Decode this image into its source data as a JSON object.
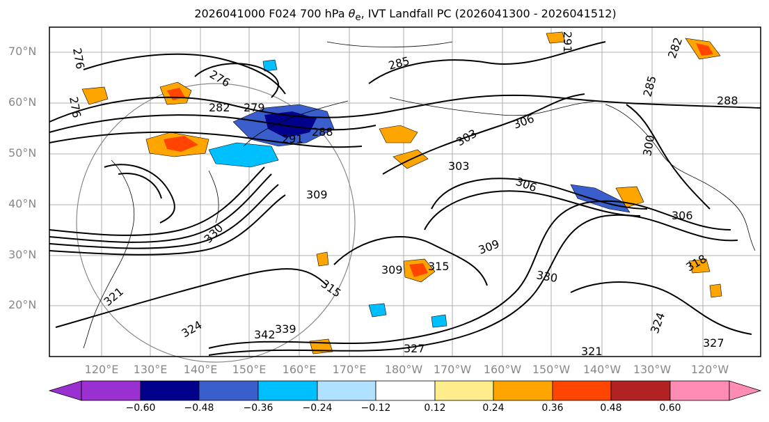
{
  "title": {
    "prefix": "2026041000 F024 700 hPa ",
    "theta": "θ",
    "theta_sub": "e",
    "suffix": ", IVT Landfall PC (2026041300 - 2026041512)"
  },
  "lat_labels": [
    "70°N",
    "60°N",
    "50°N",
    "40°N",
    "30°N",
    "20°N"
  ],
  "lon_labels": [
    "120°E",
    "130°E",
    "140°E",
    "150°E",
    "160°E",
    "170°E",
    "180°W",
    "170°W",
    "160°W",
    "150°W",
    "140°W",
    "130°W",
    "120°W"
  ],
  "colorbar": {
    "ticks": [
      "−0.60",
      "−0.48",
      "−0.36",
      "−0.24",
      "−0.12",
      "0.12",
      "0.24",
      "0.36",
      "0.48",
      "0.60"
    ],
    "colors": [
      "#9b30d0",
      "#00008b",
      "#3a5fcd",
      "#00bfff",
      "#b0e2ff",
      "#ffffff",
      "#ffec8b",
      "#ffa500",
      "#ff4500",
      "#b22222",
      "#ff8cb4"
    ]
  },
  "contour_labels": [
    "276",
    "276",
    "276",
    "282",
    "279",
    "285",
    "288",
    "291",
    "303",
    "303",
    "306",
    "306",
    "306",
    "309",
    "309",
    "309",
    "315",
    "315",
    "321",
    "324",
    "327",
    "330",
    "339",
    "342",
    "288",
    "285",
    "282",
    "291",
    "300",
    "318",
    "330",
    "324",
    "321",
    "327"
  ]
}
